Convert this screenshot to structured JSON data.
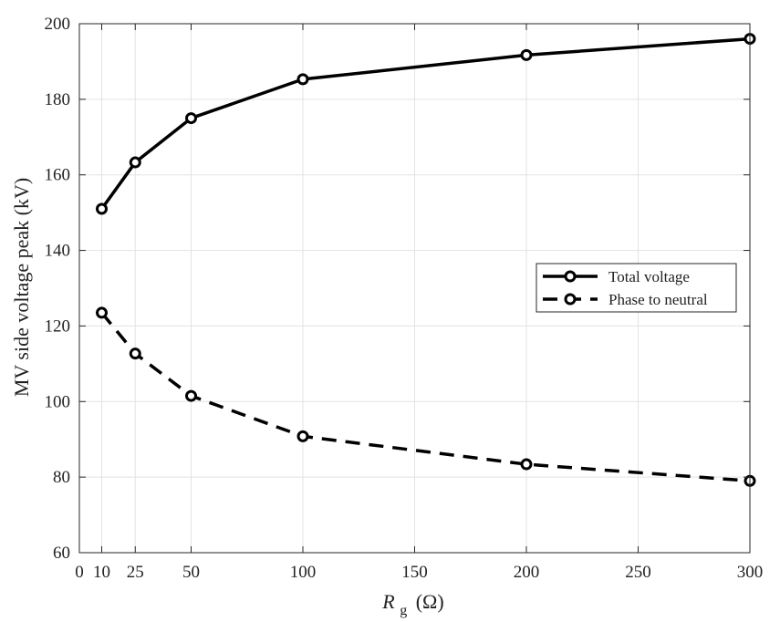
{
  "chart_data": {
    "type": "line",
    "title": "",
    "xlabel": "R",
    "xlabel_sub": "g",
    "xlabel_unit": "(Ω)",
    "ylabel": "MV side voltage peak (kV)",
    "xlim": [
      0,
      300
    ],
    "ylim": [
      60,
      200
    ],
    "xticks": [
      0,
      10,
      25,
      50,
      100,
      150,
      200,
      250,
      300
    ],
    "yticks": [
      60,
      80,
      100,
      120,
      140,
      160,
      180,
      200
    ],
    "grid": true,
    "legend_position": "right",
    "x": [
      10,
      25,
      50,
      100,
      200,
      300
    ],
    "series": [
      {
        "name": "Total voltage",
        "style": "solid",
        "marker": "circle",
        "color": "#000000",
        "values": [
          151,
          163.3,
          175,
          185.3,
          191.7,
          196
        ]
      },
      {
        "name": "Phase to neutral",
        "style": "dashed",
        "marker": "circle",
        "color": "#000000",
        "values": [
          123.5,
          112.7,
          101.5,
          90.8,
          83.4,
          79
        ]
      }
    ]
  }
}
